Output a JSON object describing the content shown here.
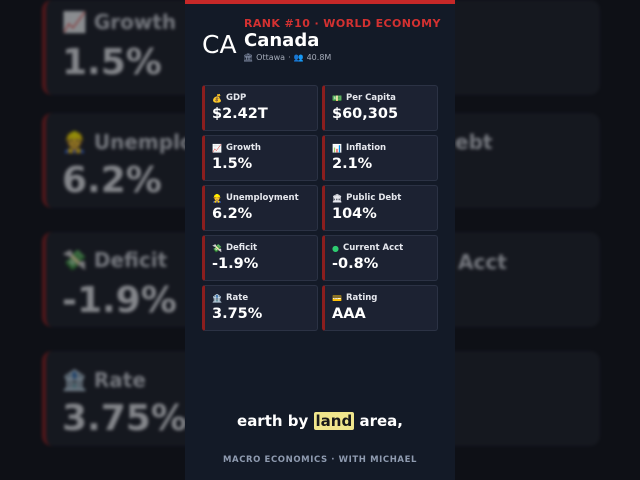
{
  "background": {
    "left": [
      {
        "label": "📈 Growth",
        "value": "1.5%"
      },
      {
        "label": "👷 Unemploy",
        "value": "6.2%"
      },
      {
        "label": "💸 Deficit",
        "value": "-1.9%"
      },
      {
        "label": "🏦 Rate",
        "value": "3.75%"
      }
    ],
    "right": [
      {
        "label": "ebt",
        "value": ""
      },
      {
        "label": "Acct",
        "value": ""
      }
    ]
  },
  "header": {
    "rank": "RANK #10 · WORLD ECONOMY",
    "code": "CA",
    "country": "Canada",
    "capital_icon": "building-icon",
    "capital": "Ottawa",
    "sep": "·",
    "population_icon": "people-icon",
    "population": "40.8M"
  },
  "stats": [
    {
      "icon": "money-bag-icon",
      "glyph": "💰",
      "label": "GDP",
      "value": "$2.42T"
    },
    {
      "icon": "banknote-icon",
      "glyph": "💵",
      "label": "Per Capita",
      "value": "$60,305"
    },
    {
      "icon": "chart-up-icon",
      "glyph": "📈",
      "label": "Growth",
      "value": "1.5%"
    },
    {
      "icon": "bar-chart-icon",
      "glyph": "📊",
      "label": "Inflation",
      "value": "2.1%"
    },
    {
      "icon": "worker-icon",
      "glyph": "👷",
      "label": "Unemployment",
      "value": "6.2%"
    },
    {
      "icon": "bank-icon",
      "glyph": "🏛",
      "label": "Public Debt",
      "value": "104%"
    },
    {
      "icon": "money-wings-icon",
      "glyph": "💸",
      "label": "Deficit",
      "value": "-1.9%"
    },
    {
      "icon": "green-circle-icon",
      "glyph": "●",
      "label": "Current Acct",
      "value": "-0.8%"
    },
    {
      "icon": "bank-building-icon",
      "glyph": "🏦",
      "label": "Rate",
      "value": "3.75%"
    },
    {
      "icon": "credit-card-icon",
      "glyph": "💳",
      "label": "Rating",
      "value": "AAA"
    }
  ],
  "caption": {
    "before": "earth by ",
    "highlight": "land",
    "after": " area,"
  },
  "footer": "MACRO ECONOMICS · WITH MICHAEL",
  "colors": {
    "accent": "#c62828",
    "panel": "#131a27",
    "card": "#1c2232",
    "highlight": "#f0e68c"
  }
}
